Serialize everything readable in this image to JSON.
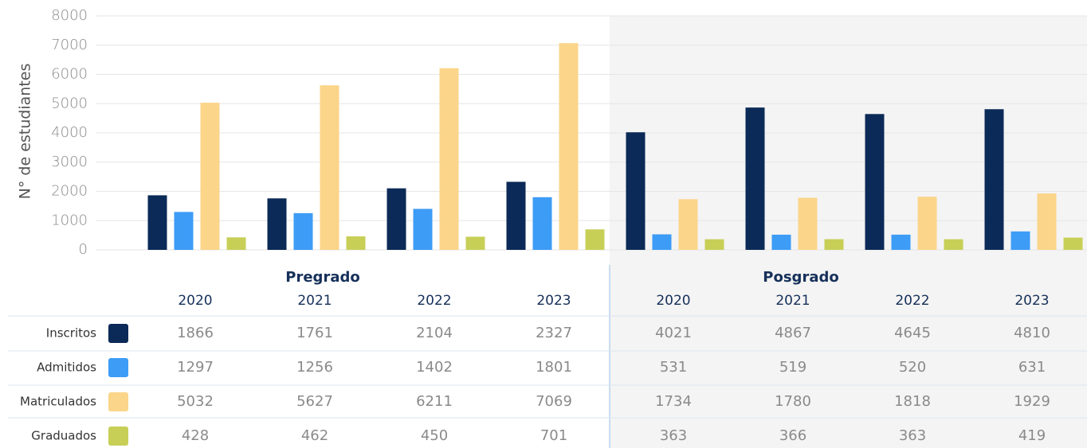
{
  "chart_data": {
    "type": "bar",
    "y_label": "N° de estudiantes",
    "groups": [
      "Pregrado",
      "Posgrado"
    ],
    "categories": [
      "2020",
      "2021",
      "2022",
      "2023",
      "2020",
      "2021",
      "2022",
      "2023"
    ],
    "series": [
      {
        "name": "Inscritos",
        "color": "#0b2a57",
        "values": [
          1866,
          1761,
          2104,
          2327,
          4021,
          4867,
          4645,
          4810
        ]
      },
      {
        "name": "Admitidos",
        "color": "#3d9cf6",
        "values": [
          1297,
          1256,
          1402,
          1801,
          531,
          519,
          520,
          631
        ]
      },
      {
        "name": "Matriculados",
        "color": "#fbd58a",
        "values": [
          5032,
          5627,
          6211,
          7069,
          1734,
          1780,
          1818,
          1929
        ]
      },
      {
        "name": "Graduados",
        "color": "#c7cf57",
        "values": [
          428,
          462,
          450,
          701,
          363,
          366,
          363,
          419
        ]
      }
    ],
    "ylim": [
      0,
      8000
    ],
    "yticks": [
      0,
      1000,
      2000,
      3000,
      4000,
      5000,
      6000,
      7000,
      8000
    ],
    "grid": true
  }
}
